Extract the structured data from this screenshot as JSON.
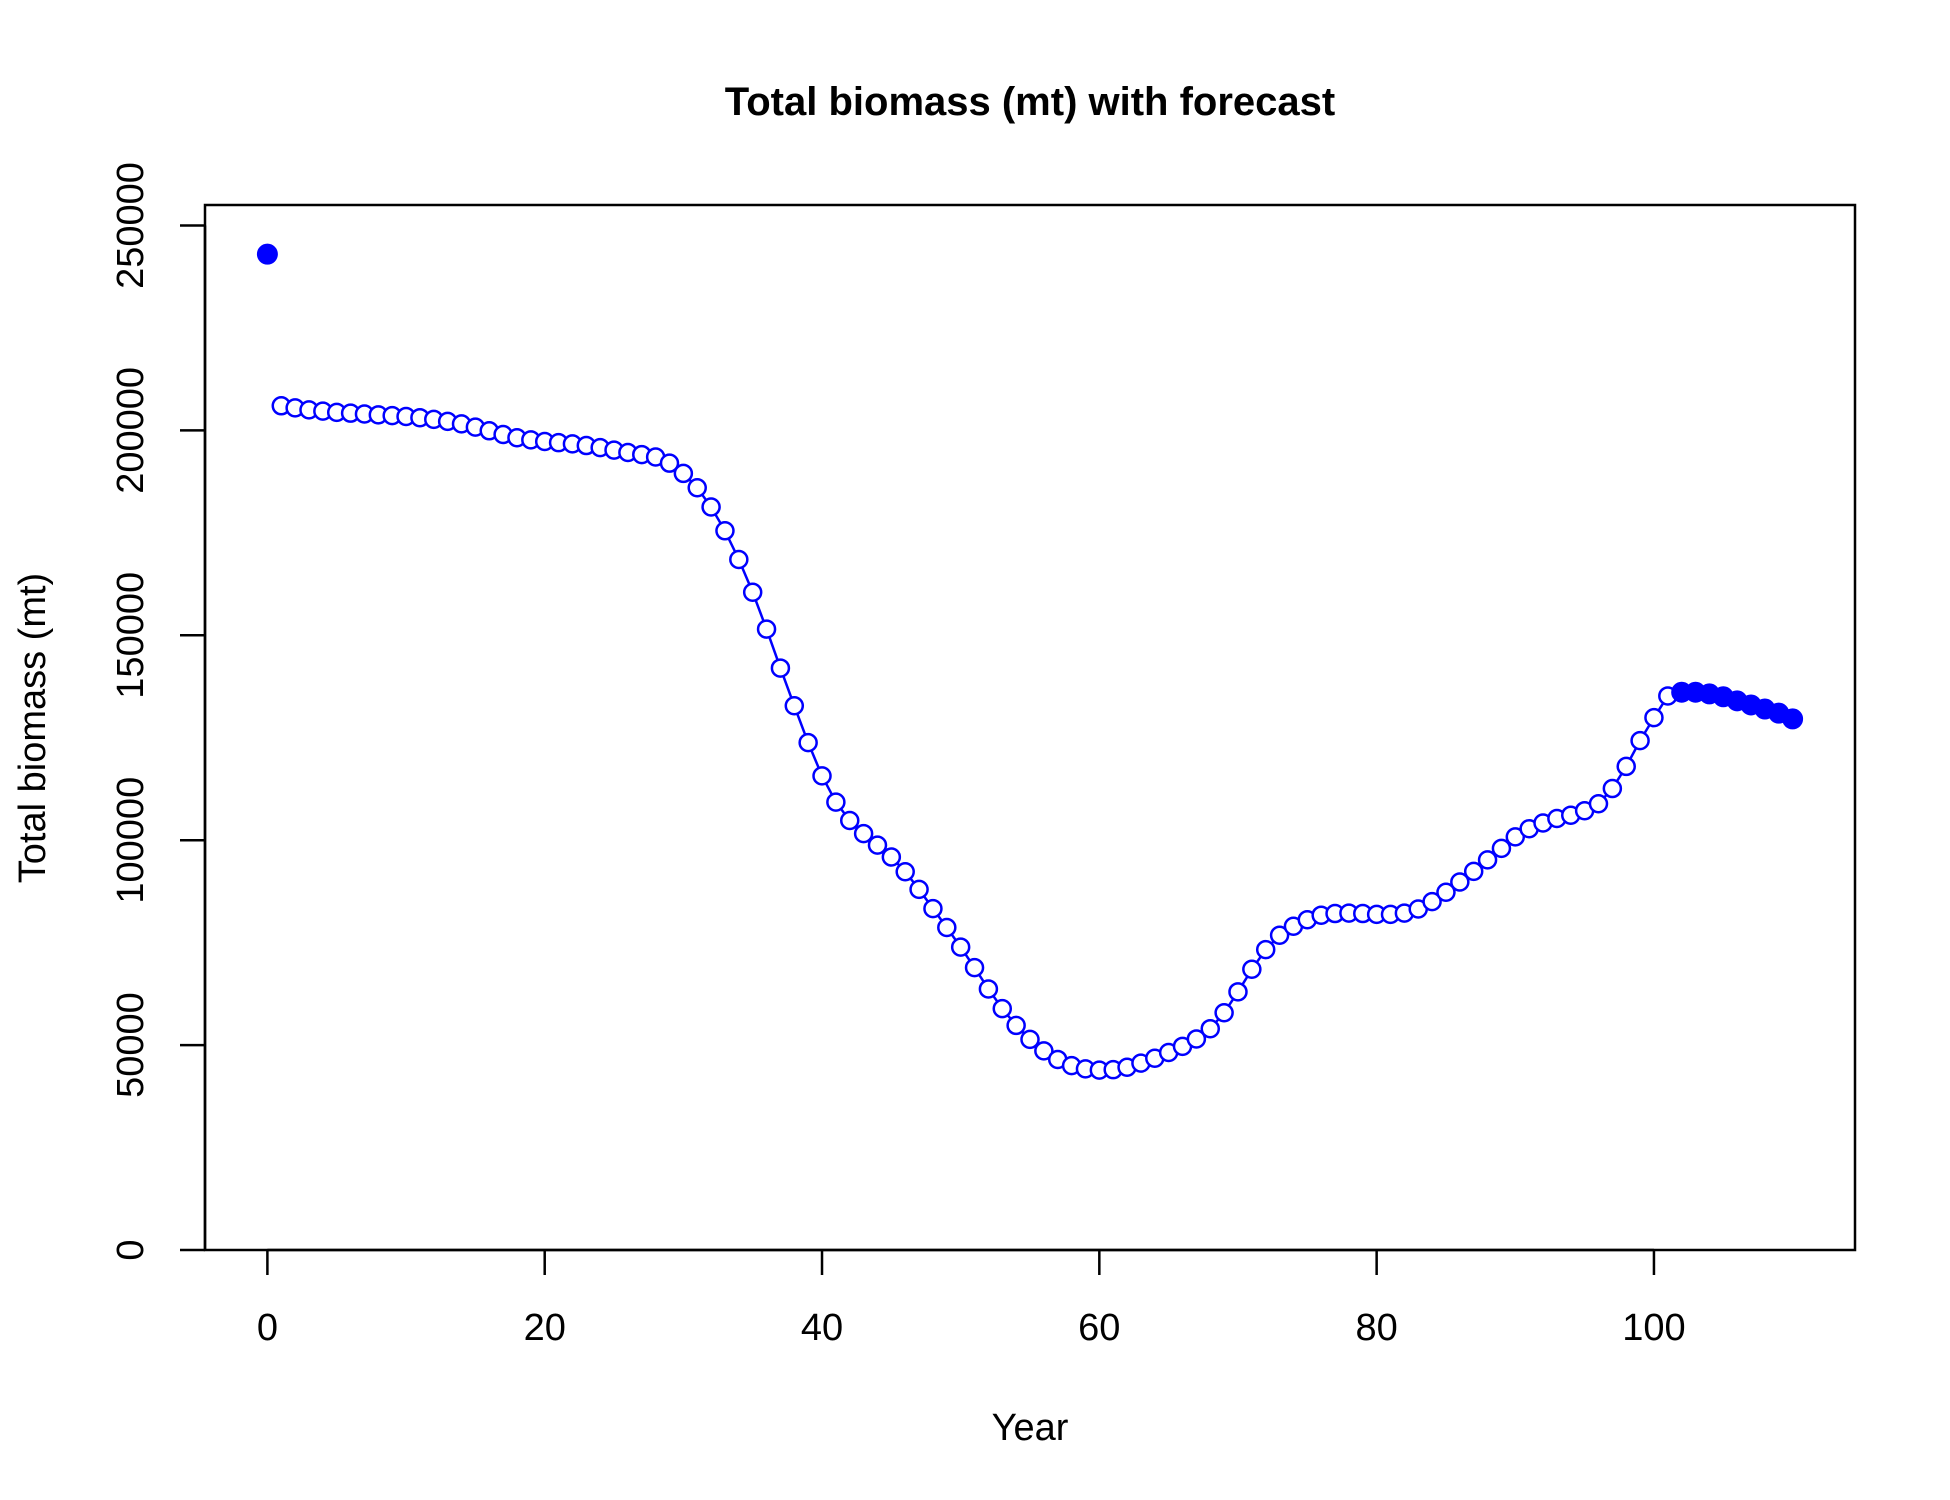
{
  "chart_data": {
    "type": "line",
    "title": "Total biomass (mt) with forecast",
    "xlabel": "Year",
    "ylabel": "Total biomass (mt)",
    "xlim": [
      -4.5,
      114.5
    ],
    "ylim": [
      0,
      255000
    ],
    "xticks": [
      0,
      20,
      40,
      60,
      80,
      100
    ],
    "yticks": [
      0,
      50000,
      100000,
      150000,
      200000,
      250000
    ],
    "grid": false,
    "color": "#0000ff",
    "initial_point": {
      "x": 0,
      "y": 243000
    },
    "series": [
      {
        "style": "line-open-circles",
        "x": [
          1,
          2,
          3,
          4,
          5,
          6,
          7,
          8,
          9,
          10,
          11,
          12,
          13,
          14,
          15,
          16,
          17,
          18,
          19,
          20,
          21,
          22,
          23,
          24,
          25,
          26,
          27,
          28,
          29,
          30,
          31,
          32,
          33,
          34,
          35,
          36,
          37,
          38,
          39,
          40,
          41,
          42,
          43,
          44,
          45,
          46,
          47,
          48,
          49,
          50,
          51,
          52,
          53,
          54,
          55,
          56,
          57,
          58,
          59,
          60,
          61,
          62,
          63,
          64,
          65,
          66,
          67,
          68,
          69,
          70,
          71,
          72,
          73,
          74,
          75,
          76,
          77,
          78,
          79,
          80,
          81,
          82,
          83,
          84,
          85,
          86,
          87,
          88,
          89,
          90,
          91,
          92,
          93,
          94,
          95,
          96,
          97,
          98,
          99,
          100,
          101
        ],
        "y": [
          206000,
          205500,
          205000,
          204700,
          204400,
          204200,
          204000,
          203800,
          203600,
          203400,
          203100,
          202700,
          202200,
          201600,
          200800,
          199900,
          199000,
          198200,
          197700,
          197300,
          197000,
          196700,
          196300,
          195800,
          195200,
          194600,
          194100,
          193500,
          192000,
          189500,
          186000,
          181300,
          175500,
          168500,
          160500,
          151500,
          142000,
          132800,
          123800,
          115700,
          109300,
          104800,
          101600,
          98800,
          95900,
          92300,
          88000,
          83300,
          78700,
          73900,
          68900,
          63700,
          58900,
          54800,
          51400,
          48600,
          46500,
          45000,
          44200,
          43900,
          44000,
          44600,
          45600,
          46800,
          48200,
          49700,
          51500,
          54000,
          57900,
          63000,
          68500,
          73300,
          76800,
          79000,
          80600,
          81700,
          82100,
          82200,
          82100,
          81900,
          81900,
          82200,
          83200,
          85000,
          87300,
          89800,
          92400,
          95200,
          98000,
          100800,
          102800,
          104200,
          105300,
          106100,
          107200,
          108900,
          112600,
          118000,
          124300,
          129900,
          135200
        ]
      },
      {
        "style": "filled-circles",
        "x": [
          102,
          103,
          104,
          105,
          106,
          107,
          108,
          109,
          110
        ],
        "y": [
          136100,
          136100,
          135700,
          135000,
          134000,
          133000,
          132000,
          131000,
          129600
        ]
      }
    ]
  }
}
